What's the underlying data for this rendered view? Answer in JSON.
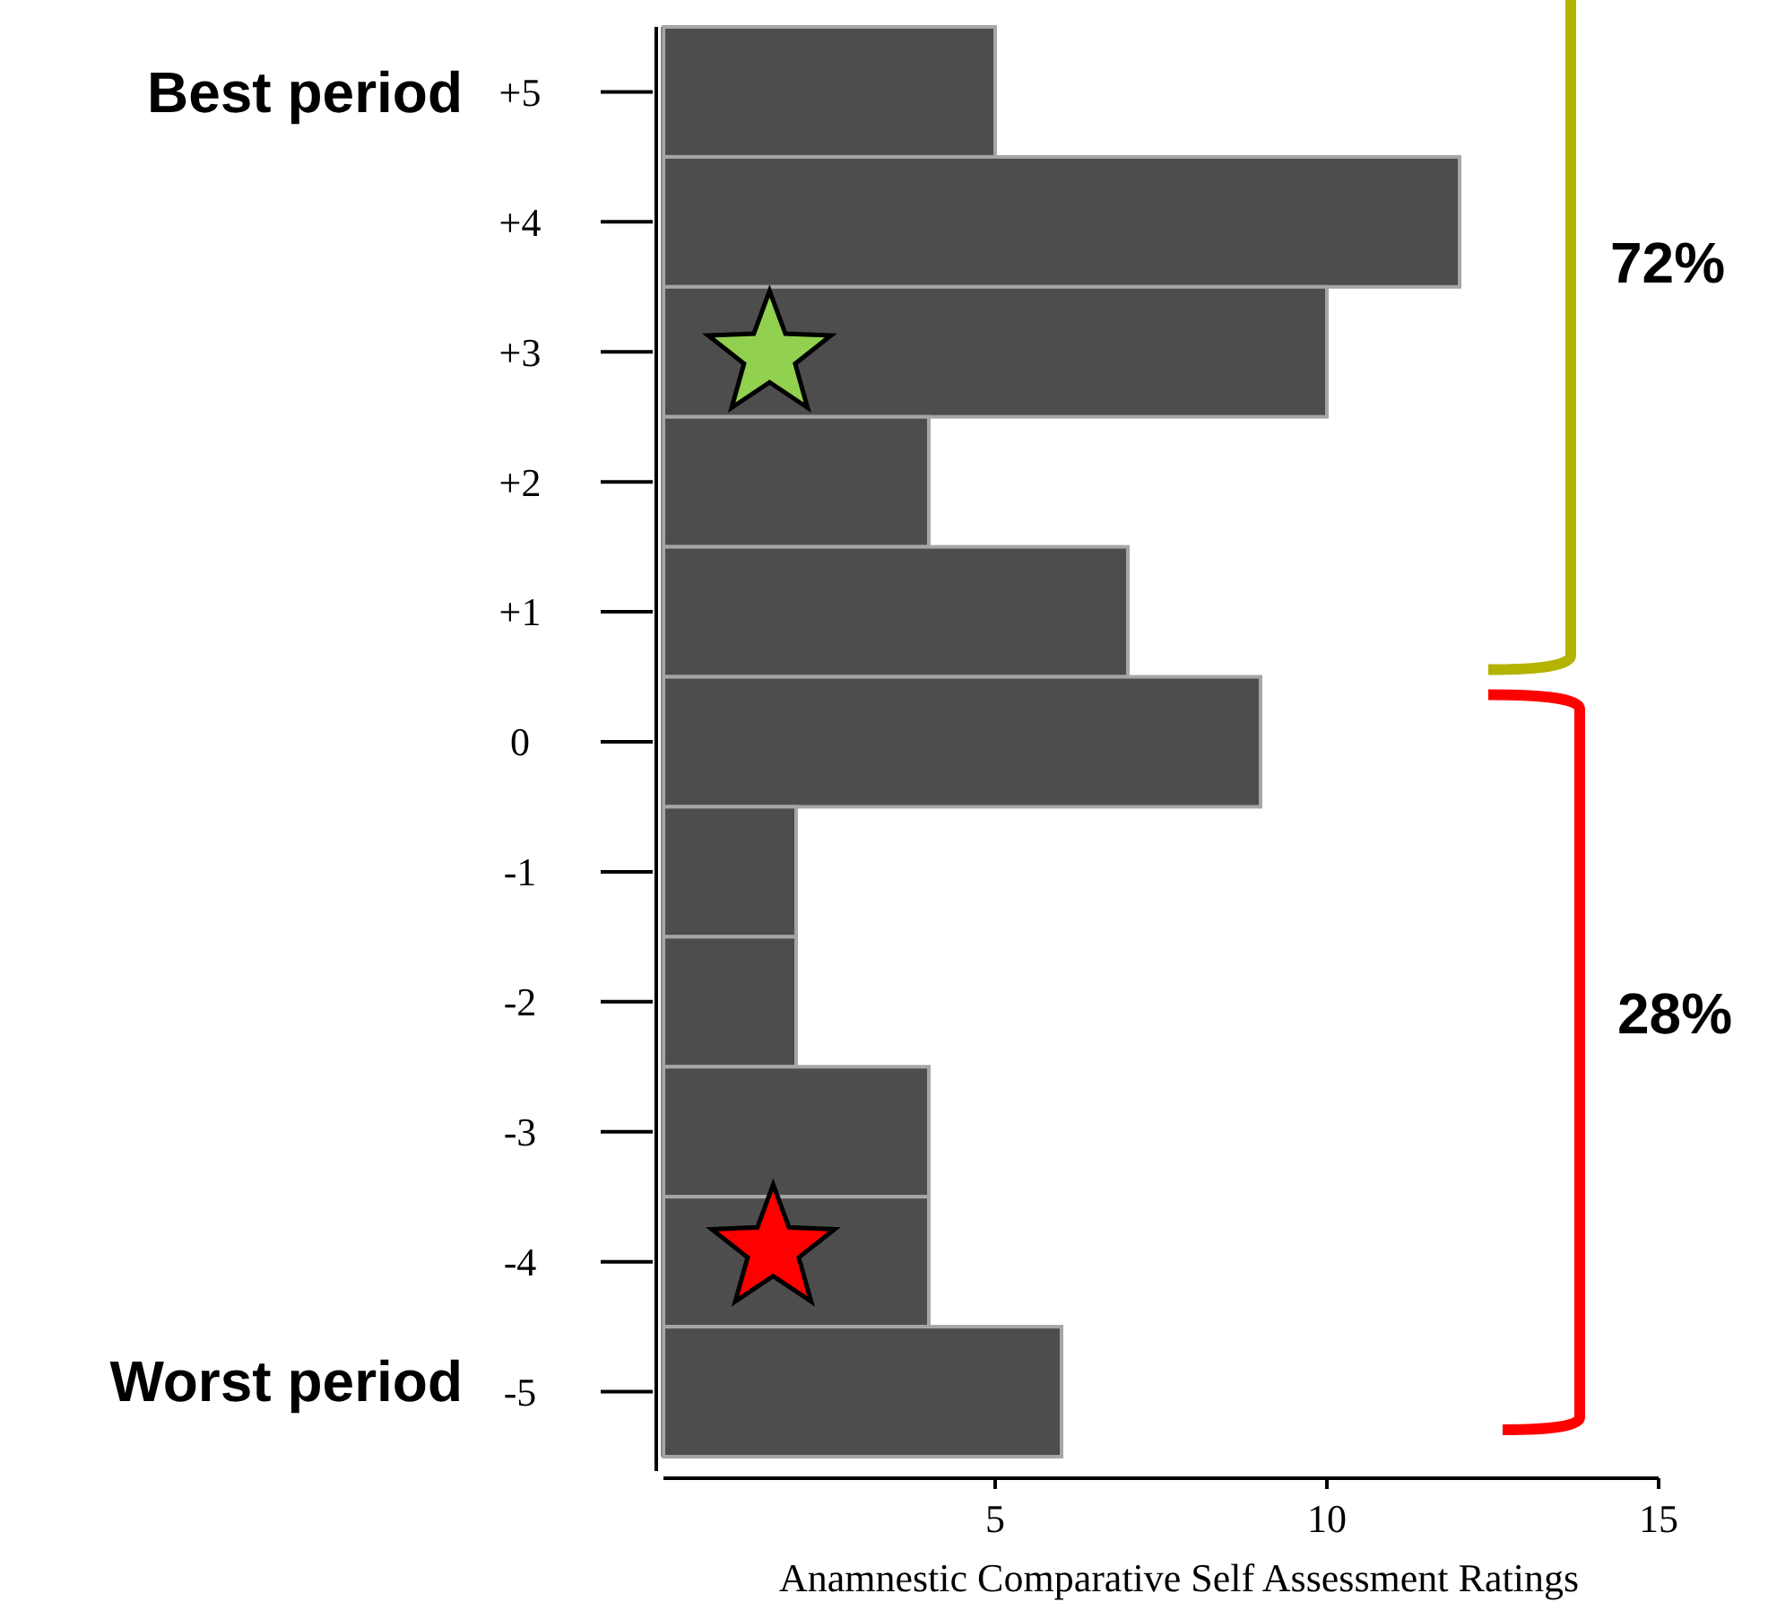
{
  "chart_data": {
    "type": "bar",
    "orientation": "horizontal",
    "xlabel": "Anamnestic Comparative Self Assessment Ratings",
    "categories": [
      "+5",
      "+4",
      "+3",
      "+2",
      "+1",
      "0",
      "-1",
      "-2",
      "-3",
      "-4",
      "-5"
    ],
    "values": [
      5,
      12,
      10,
      4,
      7,
      9,
      2,
      2,
      4,
      4,
      6
    ],
    "color": "#4d4d4d",
    "xlim": [
      0,
      15
    ],
    "xticks": [
      5,
      10,
      15
    ],
    "grid": false,
    "annotations": [
      "Best period",
      "Worst period",
      "72%",
      "28%"
    ]
  }
}
